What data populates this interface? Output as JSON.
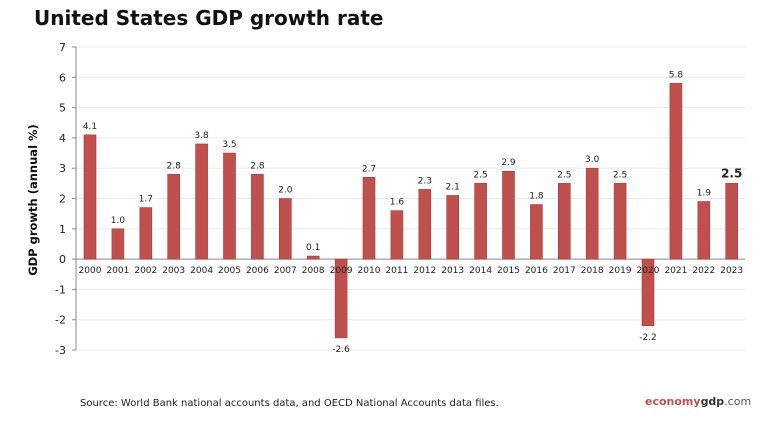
{
  "chart_data": {
    "type": "bar",
    "title": "United States GDP growth rate",
    "ylabel": "GDP growth (annual %)",
    "xlabel": "",
    "categories": [
      "2000",
      "2001",
      "2002",
      "2003",
      "2004",
      "2005",
      "2006",
      "2007",
      "2008",
      "2009",
      "2010",
      "2011",
      "2012",
      "2013",
      "2014",
      "2015",
      "2016",
      "2017",
      "2018",
      "2019",
      "2020",
      "2021",
      "2022",
      "2023"
    ],
    "values": [
      4.1,
      1.0,
      1.7,
      2.8,
      3.8,
      3.5,
      2.8,
      2.0,
      0.1,
      -2.6,
      2.7,
      1.6,
      2.3,
      2.1,
      2.5,
      2.9,
      1.8,
      2.5,
      3.0,
      2.5,
      -2.2,
      5.8,
      1.9,
      2.5
    ],
    "labels": [
      "4.1",
      "1.0",
      "1.7",
      "2.8",
      "3.8",
      "3.5",
      "2.8",
      "2.0",
      "0.1",
      "-2.6",
      "2.7",
      "1.6",
      "2.3",
      "2.1",
      "2.5",
      "2.9",
      "1.8",
      "2.5",
      "3.0",
      "2.5",
      "-2.2",
      "5.8",
      "1.9",
      "2.5"
    ],
    "ylim": [
      -3,
      7
    ],
    "yticks": [
      "-3",
      "-2",
      "-1",
      "0",
      "1",
      "2",
      "3",
      "4",
      "5",
      "6",
      "7"
    ],
    "grid": true,
    "highlight_last": true,
    "bar_color": "#c0504d"
  },
  "source": "Source:  World Bank national accounts data, and OECD National Accounts data files.",
  "logo": {
    "part1": "economy",
    "part2": "gdp",
    "part3": ".com"
  }
}
